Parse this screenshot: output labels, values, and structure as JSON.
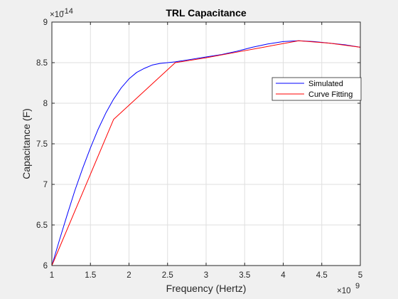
{
  "chart_data": {
    "type": "line",
    "title": "TRL Capacitance",
    "xlabel": "Frequency (Hertz)",
    "ylabel": "Capacitance (F)",
    "x_exponent_label": "×10",
    "x_exponent": "9",
    "y_exponent_label": "×10",
    "y_exponent": "-14",
    "xlim": [
      1,
      5
    ],
    "ylim": [
      6,
      9
    ],
    "x_ticks": [
      1,
      1.5,
      2,
      2.5,
      3,
      3.5,
      4,
      4.5,
      5
    ],
    "y_ticks": [
      6,
      6.5,
      7,
      7.5,
      8,
      8.5,
      9
    ],
    "x_tick_labels": [
      "1",
      "1.5",
      "2",
      "2.5",
      "3",
      "3.5",
      "4",
      "4.5",
      "5"
    ],
    "y_tick_labels": [
      "6",
      "6.5",
      "7",
      "7.5",
      "8",
      "8.5",
      "9"
    ],
    "grid": true,
    "legend_position": "top-right",
    "series": [
      {
        "name": "Simulated",
        "color": "#0000ff",
        "x": [
          1.0,
          1.1,
          1.2,
          1.3,
          1.4,
          1.5,
          1.6,
          1.7,
          1.8,
          1.9,
          2.0,
          2.1,
          2.2,
          2.3,
          2.4,
          2.5,
          2.6,
          2.8,
          3.0,
          3.2,
          3.4,
          3.6,
          3.8,
          4.0,
          4.2,
          4.4,
          4.6,
          4.8,
          5.0
        ],
        "y": [
          6.0,
          6.32,
          6.63,
          6.93,
          7.2,
          7.45,
          7.68,
          7.88,
          8.05,
          8.19,
          8.3,
          8.38,
          8.43,
          8.47,
          8.49,
          8.5,
          8.51,
          8.54,
          8.57,
          8.6,
          8.64,
          8.69,
          8.73,
          8.76,
          8.77,
          8.76,
          8.74,
          8.72,
          8.69
        ]
      },
      {
        "name": "Curve Fitting",
        "color": "#ff0000",
        "x": [
          1.0,
          1.8,
          2.6,
          3.0,
          3.4,
          3.8,
          4.2,
          4.6,
          5.0
        ],
        "y": [
          6.0,
          7.8,
          8.5,
          8.56,
          8.63,
          8.7,
          8.77,
          8.74,
          8.69
        ]
      }
    ]
  }
}
